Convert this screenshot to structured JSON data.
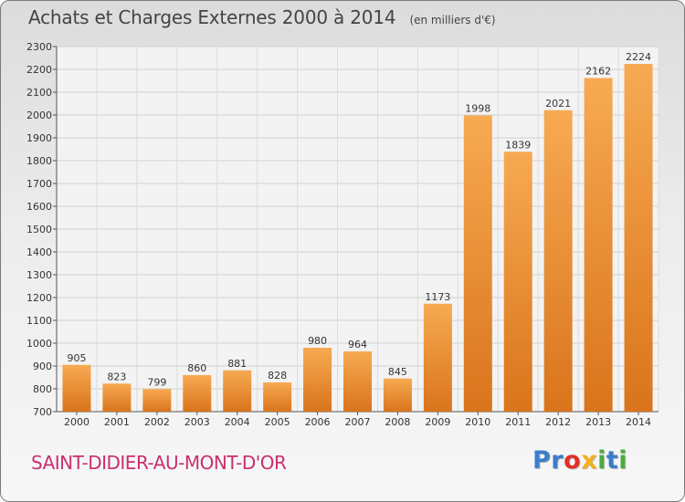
{
  "header": {
    "title": "Achats et Charges Externes 2000 à 2014",
    "unit": "(en milliers d'€)"
  },
  "footer": {
    "city": "SAINT-DIDIER-AU-MONT-D'OR",
    "logo_letters": [
      "P",
      "r",
      "o",
      "x",
      "i",
      "t",
      "i"
    ],
    "logo_colors": [
      "#3b7dc9",
      "#3b7dc9",
      "#e0302a",
      "#f2b01e",
      "#4aab3b",
      "#3b7dc9",
      "#4aab3b"
    ]
  },
  "chart_data": {
    "type": "bar",
    "categories": [
      "2000",
      "2001",
      "2002",
      "2003",
      "2004",
      "2005",
      "2006",
      "2007",
      "2008",
      "2009",
      "2010",
      "2011",
      "2012",
      "2013",
      "2014"
    ],
    "values": [
      905,
      823,
      799,
      860,
      881,
      828,
      980,
      964,
      845,
      1173,
      1998,
      1839,
      2021,
      2162,
      2224
    ],
    "ylim": [
      700,
      2300
    ],
    "ytick_step": 100,
    "grid": true,
    "bar_color_light": "#f7aa52",
    "bar_color_dark": "#d9741c"
  }
}
